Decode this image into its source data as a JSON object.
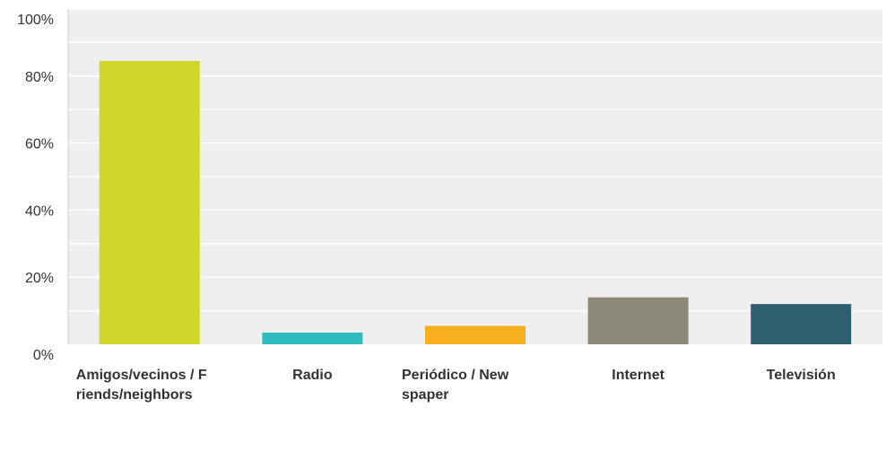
{
  "chart_data": {
    "type": "bar",
    "categories": [
      "Amigos/vecinos / Friends/neighbors",
      "Radio",
      "Periódico / Newspaper",
      "Internet",
      "Televisión"
    ],
    "values": [
      84.5,
      3.5,
      5.5,
      14,
      12
    ],
    "colors": [
      "#d0d62a",
      "#2ebcbc",
      "#f7ae1f",
      "#8b8a79",
      "#2e5f6e"
    ],
    "ylim": [
      0,
      100
    ],
    "yticks": [
      "0%",
      "20%",
      "40%",
      "60%",
      "80%",
      "100%"
    ],
    "grid": true,
    "plot_background": "#efefef",
    "xlabel": "",
    "ylabel": ""
  }
}
